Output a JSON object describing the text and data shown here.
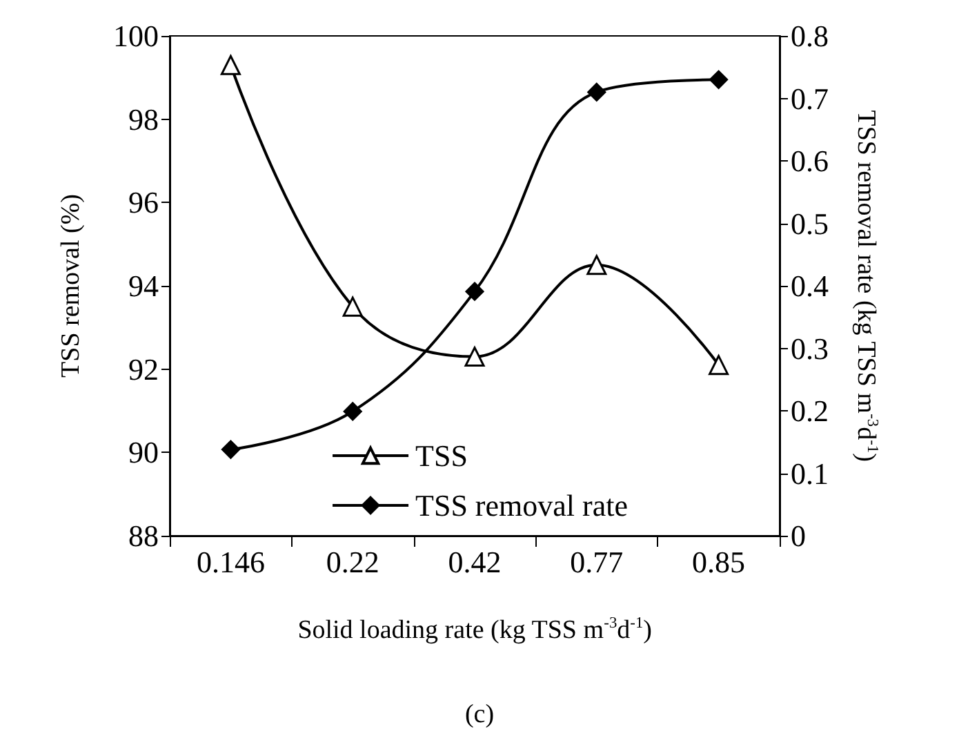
{
  "chart_data": {
    "type": "line",
    "xlabel": "Solid loading rate (kg TSS m$^{-3}$d$^{-1}$)",
    "ylabel": "TSS removal (%)",
    "y2label": "TSS removal rate (kg TSS m$^{-3}$d$^{-1}$)",
    "categories": [
      "0.146",
      "0.22",
      "0.42",
      "0.77",
      "0.85"
    ],
    "series": [
      {
        "name": "TSS",
        "color": "#000000",
        "marker": "triangle",
        "values": [
          99.3,
          93.5,
          92.3,
          94.5,
          92.1
        ]
      },
      {
        "name": "TSS removal rate",
        "color": "#000000",
        "marker": "diamond",
        "axis": "y2",
        "values": [
          0.138,
          0.199,
          0.391,
          0.71,
          0.73
        ]
      }
    ],
    "ylim": [
      88,
      100
    ],
    "yticks": [
      88,
      90,
      92,
      94,
      96,
      98,
      100
    ],
    "y2lim": [
      0,
      0.8
    ],
    "y2ticks": [
      0,
      0.1,
      0.2,
      0.3,
      0.4,
      0.5,
      0.6,
      0.7,
      0.8
    ],
    "legend": "bottom",
    "grid": false,
    "annotations": [
      "(c)"
    ]
  }
}
